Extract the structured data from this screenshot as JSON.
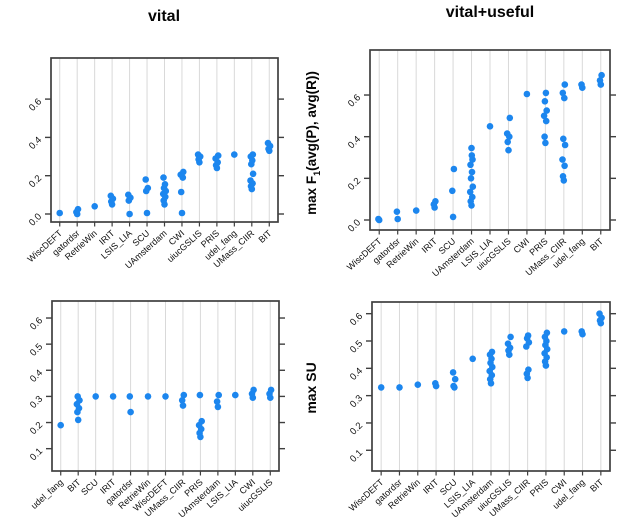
{
  "background": "#ffffff",
  "accent_color": "#1C86EE",
  "grid_color": "#d9d9d9",
  "frame_color": "#3f3f3f",
  "titles": {
    "left": "vital",
    "right": "vital+useful"
  },
  "ylabels": {
    "f1": {
      "prefix": "max F",
      "sub": "1",
      "suffix": "(avg(P), avg(R))"
    },
    "su": "max SU"
  },
  "chart_data": [
    {
      "type": "strip",
      "title": "vital",
      "ylabel": "max F1(avg(P), avg(R))",
      "grid": true,
      "legend": "none",
      "yticks": [
        {
          "label": "0.0",
          "value": 0.0
        },
        {
          "label": "0.2",
          "value": 0.2
        },
        {
          "label": "0.4",
          "value": 0.4
        },
        {
          "label": "0.6",
          "value": 0.6
        }
      ],
      "ylim": [
        -0.04,
        0.82
      ],
      "categories": [
        "WiscDEFT",
        "gatordsr",
        "RetrieWin",
        "IRIT",
        "LSIS_LIA",
        "SCU",
        "UAmsterdam",
        "CWI",
        "uiucGSLIS",
        "PRIS",
        "udel_fang",
        "UMass_CIIR",
        "BIT"
      ],
      "values": [
        [
          0.005
        ],
        [
          0.0,
          0.01,
          0.025
        ],
        [
          0.04
        ],
        [
          0.05,
          0.065,
          0.08,
          0.095
        ],
        [
          0.0,
          0.07,
          0.085,
          0.1
        ],
        [
          0.005,
          0.12,
          0.135,
          0.18
        ],
        [
          0.05,
          0.07,
          0.09,
          0.105,
          0.12,
          0.135,
          0.155,
          0.19
        ],
        [
          0.005,
          0.115,
          0.19,
          0.205,
          0.22
        ],
        [
          0.27,
          0.285,
          0.3,
          0.31
        ],
        [
          0.24,
          0.255,
          0.27,
          0.29,
          0.305
        ],
        [
          0.31
        ],
        [
          0.13,
          0.145,
          0.16,
          0.175,
          0.21,
          0.26,
          0.28,
          0.3,
          0.31
        ],
        [
          0.33,
          0.34,
          0.355,
          0.37
        ]
      ]
    },
    {
      "type": "strip",
      "title": "vital+useful",
      "ylabel": "max F1(avg(P), avg(R))",
      "grid": true,
      "legend": "none",
      "yticks": [
        {
          "label": "0.0",
          "value": 0.0
        },
        {
          "label": "0.2",
          "value": 0.2
        },
        {
          "label": "0.4",
          "value": 0.4
        },
        {
          "label": "0.6",
          "value": 0.6
        }
      ],
      "ylim": [
        -0.05,
        0.82
      ],
      "categories": [
        "WiscDEFT",
        "gatordsr",
        "RetrieWin",
        "IRIT",
        "SCU",
        "UAmsterdam",
        "LSIS_LIA",
        "uiucGSLIS",
        "CWI",
        "PRIS",
        "UMass_CIIR",
        "udel_fang",
        "BIT"
      ],
      "values": [
        [
          0.0,
          0.005
        ],
        [
          0.005,
          0.04
        ],
        [
          0.045
        ],
        [
          0.06,
          0.075,
          0.09
        ],
        [
          0.015,
          0.14,
          0.245
        ],
        [
          0.07,
          0.09,
          0.11,
          0.135,
          0.16,
          0.2,
          0.23,
          0.265,
          0.29,
          0.31,
          0.345
        ],
        [
          0.45
        ],
        [
          0.335,
          0.375,
          0.4,
          0.415,
          0.49
        ],
        [
          0.605
        ],
        [
          0.37,
          0.4,
          0.475,
          0.5,
          0.525,
          0.57,
          0.61
        ],
        [
          0.19,
          0.21,
          0.26,
          0.29,
          0.36,
          0.39,
          0.585,
          0.61,
          0.65
        ],
        [
          0.635,
          0.65
        ],
        [
          0.65,
          0.67,
          0.695
        ]
      ]
    },
    {
      "type": "strip",
      "title": "vital",
      "ylabel": "max SU",
      "grid": true,
      "legend": "none",
      "yticks": [
        {
          "label": "0.1",
          "value": 0.1
        },
        {
          "label": "0.2",
          "value": 0.2
        },
        {
          "label": "0.3",
          "value": 0.3
        },
        {
          "label": "0.4",
          "value": 0.4
        },
        {
          "label": "0.5",
          "value": 0.5
        },
        {
          "label": "0.6",
          "value": 0.6
        }
      ],
      "ylim": [
        0.01,
        0.67
      ],
      "categories": [
        "udel_fang",
        "BIT",
        "SCU",
        "IRIT",
        "gatordsr",
        "RetrieWin",
        "WiscDEFT",
        "UMass_CIIR",
        "PRIS",
        "UAmsterdam",
        "LSIS_LIA",
        "CWI",
        "uiucGSLIS"
      ],
      "values": [
        [
          0.19
        ],
        [
          0.21,
          0.24,
          0.255,
          0.27,
          0.285,
          0.3
        ],
        [
          0.3
        ],
        [
          0.3
        ],
        [
          0.24,
          0.3
        ],
        [
          0.3
        ],
        [
          0.3
        ],
        [
          0.265,
          0.285,
          0.305
        ],
        [
          0.145,
          0.16,
          0.175,
          0.19,
          0.205,
          0.305
        ],
        [
          0.26,
          0.28,
          0.305
        ],
        [
          0.305
        ],
        [
          0.295,
          0.31,
          0.325
        ],
        [
          0.295,
          0.31,
          0.325
        ]
      ]
    },
    {
      "type": "strip",
      "title": "vital+useful",
      "ylabel": "max SU",
      "grid": true,
      "legend": "none",
      "yticks": [
        {
          "label": "0.1",
          "value": 0.1
        },
        {
          "label": "0.2",
          "value": 0.2
        },
        {
          "label": "0.3",
          "value": 0.3
        },
        {
          "label": "0.4",
          "value": 0.4
        },
        {
          "label": "0.5",
          "value": 0.5
        },
        {
          "label": "0.6",
          "value": 0.6
        }
      ],
      "ylim": [
        0.02,
        0.65
      ],
      "categories": [
        "WiscDEFT",
        "gatordsr",
        "RetrieWin",
        "IRIT",
        "SCU",
        "LSIS_LIA",
        "UAmsterdam",
        "uiucGSLIS",
        "UMass_CIIR",
        "PRIS",
        "CWI",
        "udel_fang",
        "BIT"
      ],
      "values": [
        [
          0.33
        ],
        [
          0.33
        ],
        [
          0.34
        ],
        [
          0.335,
          0.345
        ],
        [
          0.33,
          0.335,
          0.36,
          0.385
        ],
        [
          0.435
        ],
        [
          0.345,
          0.36,
          0.375,
          0.39,
          0.405,
          0.42,
          0.435,
          0.45,
          0.46
        ],
        [
          0.45,
          0.465,
          0.475,
          0.49,
          0.515
        ],
        [
          0.365,
          0.38,
          0.395,
          0.48,
          0.495,
          0.51,
          0.52
        ],
        [
          0.41,
          0.425,
          0.44,
          0.455,
          0.47,
          0.485,
          0.5,
          0.515,
          0.53
        ],
        [
          0.535
        ],
        [
          0.525,
          0.535
        ],
        [
          0.565,
          0.575,
          0.585,
          0.6
        ]
      ]
    }
  ]
}
